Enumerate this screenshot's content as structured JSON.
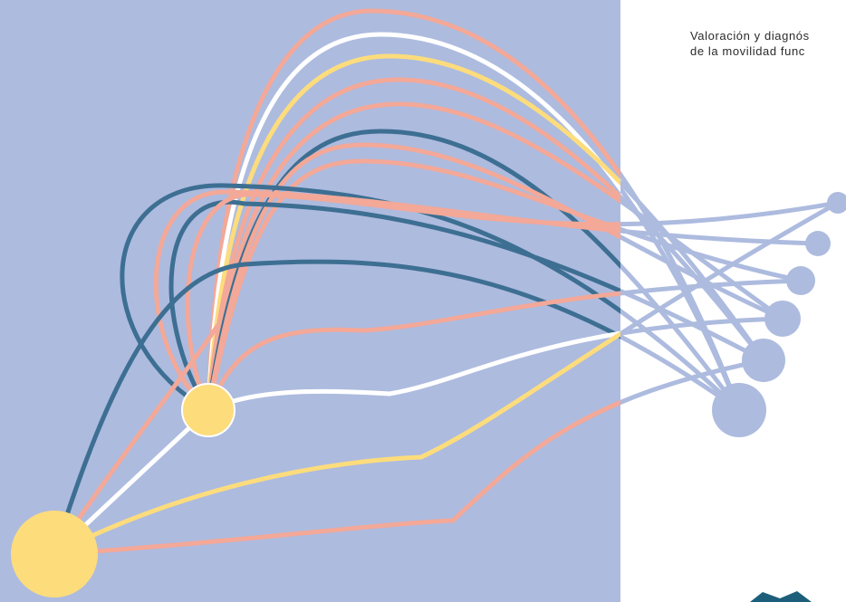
{
  "title": {
    "lines": [
      "Valoración y diagnós",
      "de la movilidad func"
    ]
  }
}
